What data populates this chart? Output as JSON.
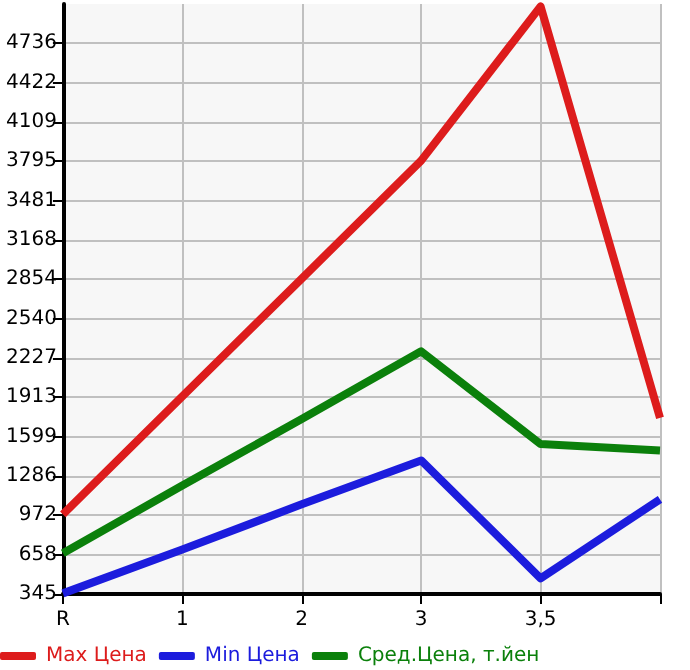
{
  "chart_data": {
    "type": "line",
    "categories": [
      "R",
      "1",
      "2",
      "3",
      "3,5",
      null
    ],
    "series": [
      {
        "name": "Max Цена",
        "color": "#dd1c1c",
        "values": [
          980,
          1920,
          2860,
          3800,
          5030,
          1750
        ]
      },
      {
        "name": "Min Цена",
        "color": "#1c1cdd",
        "values": [
          350,
          700,
          1060,
          1410,
          470,
          1100
        ]
      },
      {
        "name": "Сред.Цена, т.йен",
        "color": "#0b800b",
        "values": [
          670,
          1210,
          1740,
          2280,
          1540,
          1490
        ]
      }
    ],
    "ylim": [
      345,
      5049
    ],
    "yticks": [
      345,
      658,
      972,
      1286,
      1599,
      1913,
      2227,
      2540,
      2854,
      3168,
      3481,
      3795,
      4109,
      4422,
      4736
    ],
    "grid": true,
    "legend": "bottom",
    "marker": "none",
    "line_style": "solid"
  }
}
